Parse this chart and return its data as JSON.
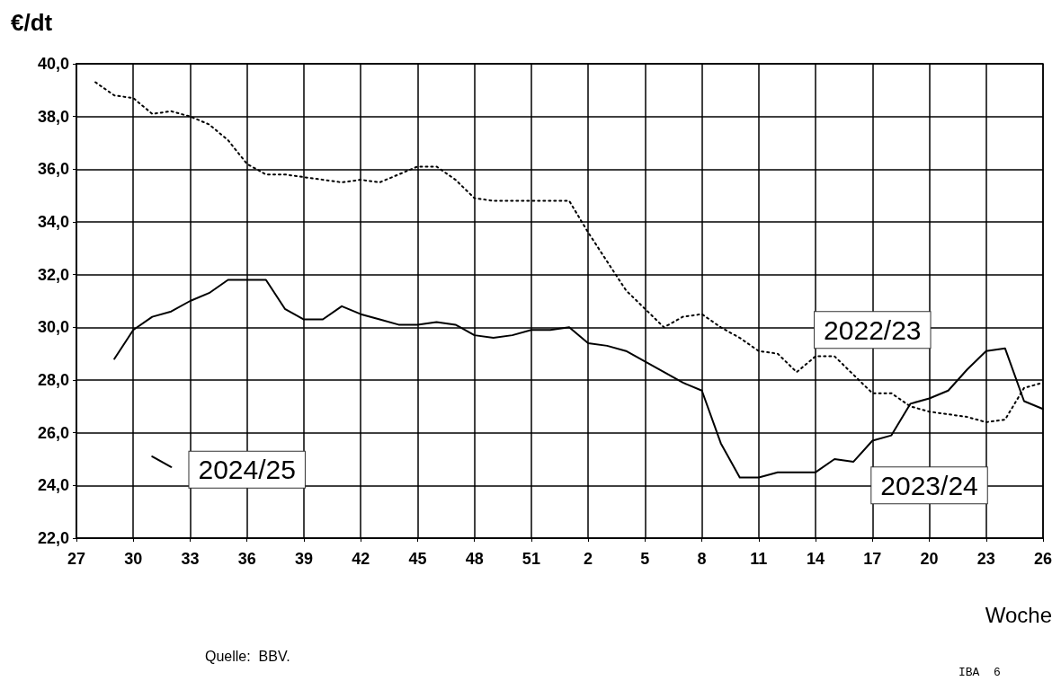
{
  "chart_data": {
    "type": "line",
    "ylabel": "€/dt",
    "xlabel": "Woche",
    "categories": [
      "27",
      null,
      null,
      "30",
      null,
      null,
      "33",
      null,
      null,
      "36",
      null,
      null,
      "39",
      null,
      null,
      "42",
      null,
      null,
      "45",
      null,
      null,
      "48",
      null,
      null,
      "51",
      null,
      null,
      "2",
      null,
      null,
      "5",
      null,
      null,
      "8",
      null,
      null,
      "11",
      null,
      null,
      "14",
      null,
      null,
      "17",
      null,
      null,
      "20",
      null,
      null,
      "23",
      null,
      null,
      "26"
    ],
    "ylim": [
      22,
      40
    ],
    "yticks": [
      {
        "value": 22,
        "label": "22,0"
      },
      {
        "value": 24,
        "label": "24,0"
      },
      {
        "value": 26,
        "label": "26,0"
      },
      {
        "value": 28,
        "label": "28,0"
      },
      {
        "value": 30,
        "label": "30,0"
      },
      {
        "value": 32,
        "label": "32,0"
      },
      {
        "value": 34,
        "label": "34,0"
      },
      {
        "value": 36,
        "label": "36,0"
      },
      {
        "value": 38,
        "label": "38,0"
      },
      {
        "value": 40,
        "label": "40,0"
      }
    ],
    "grid": true,
    "legend": false,
    "marker": "none",
    "series": [
      {
        "name": "2022/23",
        "color": "#000000",
        "line_style": "dotted",
        "values": [
          null,
          39.3,
          38.8,
          38.7,
          38.1,
          38.2,
          38.0,
          37.7,
          37.1,
          36.2,
          35.8,
          35.8,
          35.7,
          35.6,
          35.5,
          35.6,
          35.5,
          35.8,
          36.1,
          36.1,
          35.6,
          34.9,
          34.8,
          34.8,
          34.8,
          34.8,
          34.8,
          33.6,
          32.5,
          31.4,
          30.7,
          30.0,
          30.4,
          30.5,
          30.0,
          29.6,
          29.1,
          29.0,
          28.3,
          28.9,
          28.9,
          28.2,
          27.5,
          27.5,
          27.0,
          26.8,
          26.7,
          26.6,
          26.4,
          26.5,
          27.7,
          27.9
        ]
      },
      {
        "name": "2023/24",
        "color": "#000000",
        "line_style": "solid",
        "values": [
          null,
          null,
          28.8,
          29.9,
          30.4,
          30.6,
          31.0,
          31.3,
          31.8,
          31.8,
          31.8,
          30.7,
          30.3,
          30.3,
          30.8,
          30.5,
          30.3,
          30.1,
          30.1,
          30.2,
          30.1,
          29.7,
          29.6,
          29.7,
          29.9,
          29.9,
          30.0,
          29.4,
          29.3,
          29.1,
          28.7,
          28.3,
          27.9,
          27.6,
          25.6,
          24.3,
          24.3,
          24.5,
          24.5,
          24.5,
          25.0,
          24.9,
          25.7,
          25.9,
          27.1,
          27.3,
          27.6,
          28.4,
          29.1,
          29.2,
          27.2,
          26.9
        ]
      },
      {
        "name": "2024/25",
        "color": "#000000",
        "line_style": "solid",
        "values": [
          null,
          null,
          null,
          null,
          25.1,
          24.7,
          null,
          null,
          null,
          null,
          null,
          null,
          null,
          null,
          null,
          null,
          null,
          null,
          null,
          null,
          null,
          null,
          null,
          null,
          null,
          null,
          null,
          null,
          null,
          null,
          null,
          null,
          null,
          null,
          null,
          null,
          null,
          null,
          null,
          null,
          null,
          null,
          null,
          null,
          null,
          null,
          null,
          null,
          null,
          null,
          null,
          null
        ]
      }
    ],
    "annotations": [
      "Quelle:  BBV.",
      "IBA  6"
    ]
  }
}
